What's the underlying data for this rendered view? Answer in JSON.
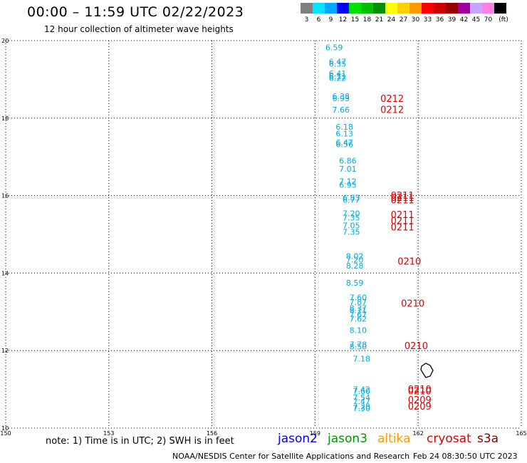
{
  "header": {
    "title": "00:00 – 11:59 UTC 02/22/2023",
    "subtitle": "12 hour collection of altimeter wave heights"
  },
  "legend": {
    "unit": "(ft)",
    "entries": [
      {
        "label": "3",
        "color": "#7f7f7f"
      },
      {
        "label": "6",
        "color": "#00e5ff"
      },
      {
        "label": "9",
        "color": "#00a8ff"
      },
      {
        "label": "12",
        "color": "#0000ff"
      },
      {
        "label": "15",
        "color": "#00e000"
      },
      {
        "label": "18",
        "color": "#00bf00"
      },
      {
        "label": "21",
        "color": "#008f00"
      },
      {
        "label": "24",
        "color": "#ffff00"
      },
      {
        "label": "27",
        "color": "#ffd000"
      },
      {
        "label": "30",
        "color": "#ff9a00"
      },
      {
        "label": "33",
        "color": "#ff0000"
      },
      {
        "label": "36",
        "color": "#cc0000"
      },
      {
        "label": "39",
        "color": "#990000"
      },
      {
        "label": "42",
        "color": "#a000a0"
      },
      {
        "label": "45",
        "color": "#c7a6ff"
      },
      {
        "label": "70",
        "color": "#ff80e0"
      },
      {
        "label": "",
        "color": "#000000"
      }
    ]
  },
  "map": {
    "lon_ticks": [
      "150",
      "153",
      "156",
      "159",
      "162",
      "165"
    ],
    "lat_ticks": [
      "20",
      "18",
      "16",
      "14",
      "12",
      "10"
    ],
    "lon_range": [
      150,
      165
    ],
    "lat_range": [
      10,
      20
    ],
    "wave_color": "#00aadd",
    "date_color": "#dd0000",
    "wave_heights": [
      {
        "lon": 159.3,
        "lat": 19.75,
        "v": "6.59"
      },
      {
        "lon": 159.4,
        "lat": 19.38,
        "v": "6.47"
      },
      {
        "lon": 159.4,
        "lat": 19.33,
        "v": "6.35"
      },
      {
        "lon": 159.4,
        "lat": 19.08,
        "v": "6.41"
      },
      {
        "lon": 159.4,
        "lat": 19.01,
        "v": "6.11"
      },
      {
        "lon": 159.4,
        "lat": 18.96,
        "v": "6.22"
      },
      {
        "lon": 159.5,
        "lat": 18.49,
        "v": "6.38"
      },
      {
        "lon": 159.5,
        "lat": 18.44,
        "v": "6.93"
      },
      {
        "lon": 159.5,
        "lat": 18.14,
        "v": "7.66"
      },
      {
        "lon": 159.6,
        "lat": 17.7,
        "v": "6.18"
      },
      {
        "lon": 159.6,
        "lat": 17.53,
        "v": "6.13"
      },
      {
        "lon": 159.6,
        "lat": 17.3,
        "v": "6.47"
      },
      {
        "lon": 159.6,
        "lat": 17.25,
        "v": "6.56"
      },
      {
        "lon": 159.7,
        "lat": 16.83,
        "v": "6.86"
      },
      {
        "lon": 159.7,
        "lat": 16.62,
        "v": "7.01"
      },
      {
        "lon": 159.7,
        "lat": 16.3,
        "v": "7.12"
      },
      {
        "lon": 159.7,
        "lat": 16.2,
        "v": "6.95"
      },
      {
        "lon": 159.8,
        "lat": 15.87,
        "v": "6.83"
      },
      {
        "lon": 159.8,
        "lat": 15.82,
        "v": "6.77"
      },
      {
        "lon": 159.8,
        "lat": 15.47,
        "v": "7.20"
      },
      {
        "lon": 159.8,
        "lat": 15.36,
        "v": "7.35"
      },
      {
        "lon": 159.8,
        "lat": 15.16,
        "v": "7.05"
      },
      {
        "lon": 159.8,
        "lat": 14.99,
        "v": "7.35"
      },
      {
        "lon": 159.9,
        "lat": 14.37,
        "v": "8.02"
      },
      {
        "lon": 159.9,
        "lat": 14.27,
        "v": "7.20"
      },
      {
        "lon": 159.9,
        "lat": 14.12,
        "v": "8.28"
      },
      {
        "lon": 159.9,
        "lat": 13.68,
        "v": "8.59"
      },
      {
        "lon": 160.0,
        "lat": 13.3,
        "v": "7.60"
      },
      {
        "lon": 160.0,
        "lat": 13.18,
        "v": "7.87"
      },
      {
        "lon": 160.0,
        "lat": 13.02,
        "v": "8.37"
      },
      {
        "lon": 160.0,
        "lat": 12.97,
        "v": "8.11"
      },
      {
        "lon": 160.0,
        "lat": 12.86,
        "v": "7.67"
      },
      {
        "lon": 160.0,
        "lat": 12.75,
        "v": "7.62"
      },
      {
        "lon": 160.0,
        "lat": 12.45,
        "v": "8.10"
      },
      {
        "lon": 160.0,
        "lat": 12.09,
        "v": "7.78"
      },
      {
        "lon": 160.0,
        "lat": 12.03,
        "v": "8.50"
      },
      {
        "lon": 160.1,
        "lat": 11.72,
        "v": "7.18"
      },
      {
        "lon": 160.1,
        "lat": 10.93,
        "v": "7.42"
      },
      {
        "lon": 160.1,
        "lat": 10.88,
        "v": "7.60"
      },
      {
        "lon": 160.1,
        "lat": 10.72,
        "v": "7.54"
      },
      {
        "lon": 160.1,
        "lat": 10.62,
        "v": "7.47"
      },
      {
        "lon": 160.1,
        "lat": 10.49,
        "v": "7.28"
      },
      {
        "lon": 160.1,
        "lat": 10.44,
        "v": "7.30"
      }
    ],
    "pass_dates": [
      {
        "lon": 160.9,
        "lat": 18.42,
        "v": "0212"
      },
      {
        "lon": 160.9,
        "lat": 18.13,
        "v": "0212"
      },
      {
        "lon": 161.2,
        "lat": 15.92,
        "v": "0211"
      },
      {
        "lon": 161.2,
        "lat": 15.86,
        "v": "0211"
      },
      {
        "lon": 161.2,
        "lat": 15.8,
        "v": "0211"
      },
      {
        "lon": 161.2,
        "lat": 15.42,
        "v": "0211"
      },
      {
        "lon": 161.2,
        "lat": 15.27,
        "v": "0211"
      },
      {
        "lon": 161.2,
        "lat": 15.1,
        "v": "0211"
      },
      {
        "lon": 161.4,
        "lat": 14.22,
        "v": "0210"
      },
      {
        "lon": 161.5,
        "lat": 13.13,
        "v": "0210"
      },
      {
        "lon": 161.6,
        "lat": 12.04,
        "v": "0210"
      },
      {
        "lon": 161.7,
        "lat": 10.92,
        "v": "0210"
      },
      {
        "lon": 161.7,
        "lat": 10.87,
        "v": "0210"
      },
      {
        "lon": 161.7,
        "lat": 10.64,
        "v": "0209"
      },
      {
        "lon": 161.7,
        "lat": 10.48,
        "v": "0209"
      }
    ]
  },
  "notes": {
    "note": "note: 1) Time is in UTC; 2) SWH is in feet",
    "satellites": [
      {
        "name": "jason2",
        "color": "#0000ff"
      },
      {
        "name": "jason3",
        "color": "#009900"
      },
      {
        "name": "altika",
        "color": "#ff9900"
      },
      {
        "name": "cryosat",
        "color": "#dd0000"
      },
      {
        "name": "s3a",
        "color": "#880000"
      }
    ],
    "credit": "NOAA/NESDIS Center for Satellite Applications and Research",
    "generated": "Feb 24 08:30:50 UTC 2023"
  }
}
